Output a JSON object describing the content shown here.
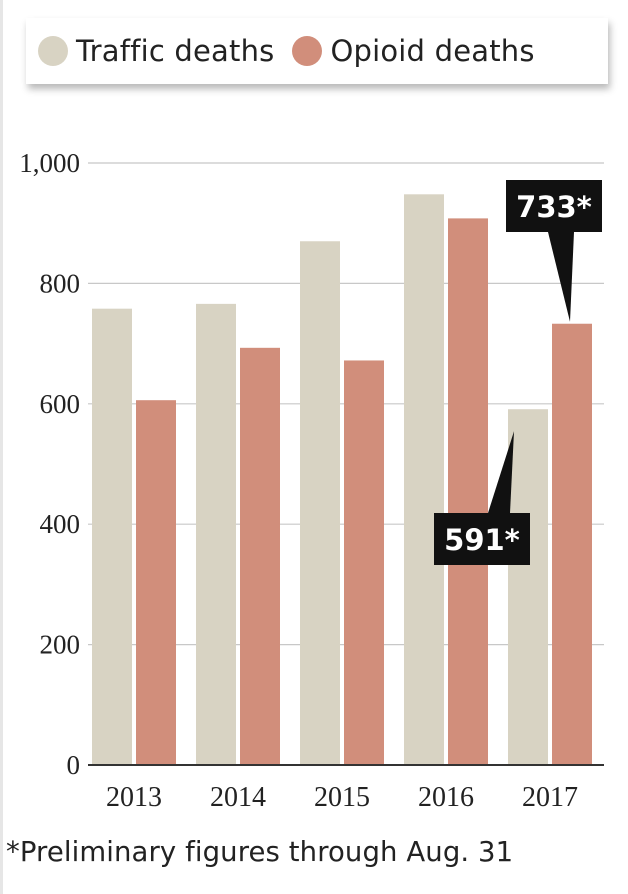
{
  "colors": {
    "traffic": "#d8d3c3",
    "opioid": "#d18e7b",
    "gridline": "#c8c8c8",
    "callout_bg": "#111111"
  },
  "legend": [
    {
      "key": "traffic",
      "label": "Traffic deaths"
    },
    {
      "key": "opioid",
      "label": "Opioid deaths"
    }
  ],
  "footnote": "*Preliminary figures through Aug. 31",
  "chart_data": {
    "type": "bar",
    "categories": [
      "2013",
      "2014",
      "2015",
      "2016",
      "2017"
    ],
    "series": [
      {
        "name": "Traffic deaths",
        "values": [
          758,
          766,
          870,
          948,
          591
        ]
      },
      {
        "name": "Opioid deaths",
        "values": [
          606,
          693,
          672,
          908,
          733
        ]
      }
    ],
    "ylim": [
      0,
      1000
    ],
    "yticks": [
      {
        "value": 0,
        "label": "0"
      },
      {
        "value": 200,
        "label": "200"
      },
      {
        "value": 400,
        "label": "400"
      },
      {
        "value": 600,
        "label": "600"
      },
      {
        "value": 800,
        "label": "800"
      },
      {
        "value": 1000,
        "label": "1,000"
      }
    ],
    "grid": true,
    "legend_position": "top",
    "annotations": [
      {
        "label": "733*",
        "series": 1,
        "category": "2017"
      },
      {
        "label": "591*",
        "series": 0,
        "category": "2017"
      }
    ]
  }
}
